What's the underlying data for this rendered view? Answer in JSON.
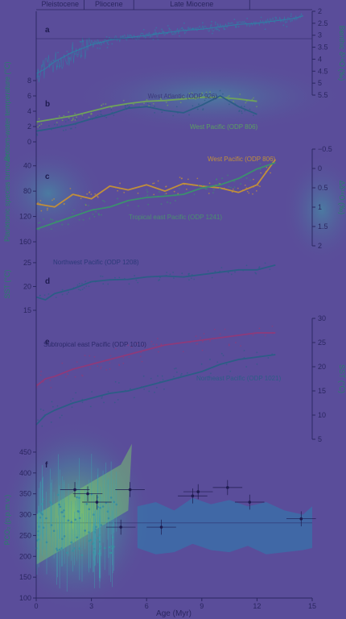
{
  "epochs": [
    {
      "label": "Pleistocene",
      "start": 0,
      "end": 2.6
    },
    {
      "label": "Pliocene",
      "start": 2.6,
      "end": 5.3
    },
    {
      "label": "Late Miocene",
      "start": 5.3,
      "end": 11.6
    }
  ],
  "x_axis": {
    "label": "Age (Myr)",
    "ticks": [
      0,
      3,
      6,
      9,
      12,
      15
    ],
    "range": [
      0,
      15
    ]
  },
  "chart_data": [
    {
      "panel": "a",
      "type": "line",
      "ylabel_right": "Benthic δ¹⁸O (‰)",
      "y_ticks": [
        2,
        2.5,
        3,
        3.5,
        4,
        4.5,
        5,
        5.5
      ],
      "ylim": [
        2,
        5.5
      ],
      "inverted": true,
      "series": [
        {
          "color": "#2f7fa6",
          "x": [
            0,
            0.5,
            1,
            1.5,
            2,
            2.5,
            3,
            3.5,
            4,
            4.5,
            5,
            6,
            7,
            8,
            9,
            10,
            11,
            12,
            13,
            14,
            14.5
          ],
          "y": [
            4.6,
            4.4,
            4.1,
            3.9,
            3.7,
            3.55,
            3.4,
            3.3,
            3.2,
            3.15,
            3.1,
            3.0,
            2.9,
            2.8,
            2.75,
            2.65,
            2.55,
            2.5,
            2.4,
            2.3,
            2.2
          ]
        }
      ]
    },
    {
      "panel": "b",
      "type": "line",
      "ylabel_left": "Bottom-water temperature (°C)",
      "y_ticks": [
        0,
        2,
        4,
        6,
        8
      ],
      "ylim": [
        0,
        8
      ],
      "annotations": [
        "West Atlantic (ODP 926)",
        "West Pacific (ODP 806)"
      ],
      "series": [
        {
          "color": "#6fa25a",
          "x": [
            0,
            1,
            2,
            3,
            4,
            5,
            6,
            7,
            8,
            9,
            10,
            11,
            12
          ],
          "y": [
            2.6,
            3.0,
            3.4,
            4.0,
            4.6,
            5.0,
            5.3,
            5.4,
            5.6,
            5.8,
            5.8,
            5.6,
            5.3
          ]
        },
        {
          "color": "#2c5d86",
          "x": [
            0,
            1,
            2,
            3,
            4,
            5,
            6,
            7,
            8,
            9,
            10,
            11,
            12
          ],
          "y": [
            1.4,
            1.8,
            2.3,
            3.0,
            3.6,
            4.4,
            4.6,
            4.1,
            3.8,
            4.8,
            6.0,
            4.6,
            3.6
          ]
        }
      ]
    },
    {
      "panel": "c",
      "type": "line",
      "ylabel_left": "Planktonic species turnover",
      "ylabel_right": "Δδ¹⁸O (‰)",
      "y_ticks_left": [
        40,
        80,
        120,
        160
      ],
      "ylim_left": [
        20,
        160
      ],
      "y_ticks_right": [
        "−0.5",
        "0",
        "0.5",
        "1",
        "1.5",
        "2"
      ],
      "annotations": [
        "West Pacific (ODP 806)",
        "Tropical east Pacific (ODP 1241)"
      ],
      "series": [
        {
          "color": "#c18f3a",
          "x": [
            0,
            1,
            2,
            3,
            4,
            5,
            6,
            7,
            8,
            9,
            10,
            11,
            12,
            13
          ],
          "y": [
            100,
            105,
            85,
            92,
            72,
            78,
            70,
            80,
            68,
            72,
            75,
            82,
            70,
            30
          ]
        },
        {
          "color": "#3c8f6e",
          "x": [
            0,
            1,
            2,
            3,
            4,
            5,
            6,
            7,
            8,
            9,
            10,
            11,
            12,
            13
          ],
          "y": [
            140,
            130,
            120,
            110,
            105,
            95,
            90,
            88,
            85,
            75,
            70,
            60,
            45,
            35
          ]
        }
      ]
    },
    {
      "panel": "d",
      "type": "line",
      "ylabel_left": "SST (°C)",
      "y_ticks": [
        15,
        20,
        25
      ],
      "ylim": [
        15,
        26
      ],
      "annotations": [
        "Northwest Pacific (ODP 1208)"
      ],
      "series": [
        {
          "color": "#2c5d86",
          "x": [
            0,
            0.5,
            1,
            2,
            3,
            4,
            5,
            6,
            7,
            8,
            9,
            10,
            11,
            12,
            13
          ],
          "y": [
            17.8,
            17.2,
            18.5,
            19.5,
            21.0,
            21.4,
            21.5,
            22.0,
            22.2,
            22.0,
            22.5,
            23.0,
            23.5,
            23.5,
            24.5
          ]
        }
      ]
    },
    {
      "panel": "e",
      "type": "line",
      "ylabel_right": "SST (°C)",
      "y_ticks": [
        5,
        10,
        15,
        20,
        25,
        30
      ],
      "ylim": [
        5,
        30
      ],
      "annotations": [
        "Subtropical east Pacific (ODP 1010)",
        "Northeast Pacific (ODP 1021)"
      ],
      "series": [
        {
          "color": "#8e3a7a",
          "x": [
            0,
            0.5,
            1,
            2,
            3,
            4,
            5,
            6,
            7,
            8,
            9,
            10,
            11,
            12,
            13
          ],
          "y": [
            16.0,
            17.5,
            18.0,
            19.5,
            20.5,
            21.5,
            22.5,
            23.5,
            24.5,
            25.0,
            25.5,
            26.0,
            26.5,
            27.0,
            27.0
          ]
        },
        {
          "color": "#2c5d86",
          "x": [
            0,
            0.5,
            1,
            2,
            3,
            4,
            5,
            6,
            7,
            8,
            9,
            10,
            11,
            12,
            13
          ],
          "y": [
            8.0,
            10.0,
            11.0,
            12.5,
            13.5,
            14.5,
            15.0,
            16.0,
            17.0,
            18.0,
            19.0,
            20.5,
            21.5,
            22.0,
            22.5
          ]
        }
      ]
    },
    {
      "panel": "f",
      "type": "scatter",
      "ylabel_left": "PCO₂ (p.p.m.v.)",
      "y_ticks": [
        100,
        150,
        200,
        250,
        300,
        350,
        400,
        450
      ],
      "ylim": [
        100,
        475
      ],
      "points": [
        {
          "x": 2.1,
          "y": 360
        },
        {
          "x": 2.8,
          "y": 350
        },
        {
          "x": 3.3,
          "y": 330
        },
        {
          "x": 4.6,
          "y": 270
        },
        {
          "x": 5.1,
          "y": 360
        },
        {
          "x": 6.8,
          "y": 270
        },
        {
          "x": 8.5,
          "y": 345
        },
        {
          "x": 8.8,
          "y": 355
        },
        {
          "x": 10.4,
          "y": 365
        },
        {
          "x": 11.6,
          "y": 330
        },
        {
          "x": 14.4,
          "y": 290
        }
      ],
      "band": {
        "color": "#2c7fb0",
        "x": [
          5.5,
          6.5,
          7.5,
          8.5,
          9.5,
          10.5,
          11.5,
          12.5,
          13.5,
          14.5,
          15
        ],
        "lo": [
          220,
          205,
          210,
          230,
          215,
          210,
          225,
          205,
          210,
          215,
          220
        ],
        "hi": [
          320,
          330,
          310,
          340,
          325,
          335,
          320,
          330,
          310,
          300,
          320
        ]
      },
      "reference_line": 280
    }
  ]
}
